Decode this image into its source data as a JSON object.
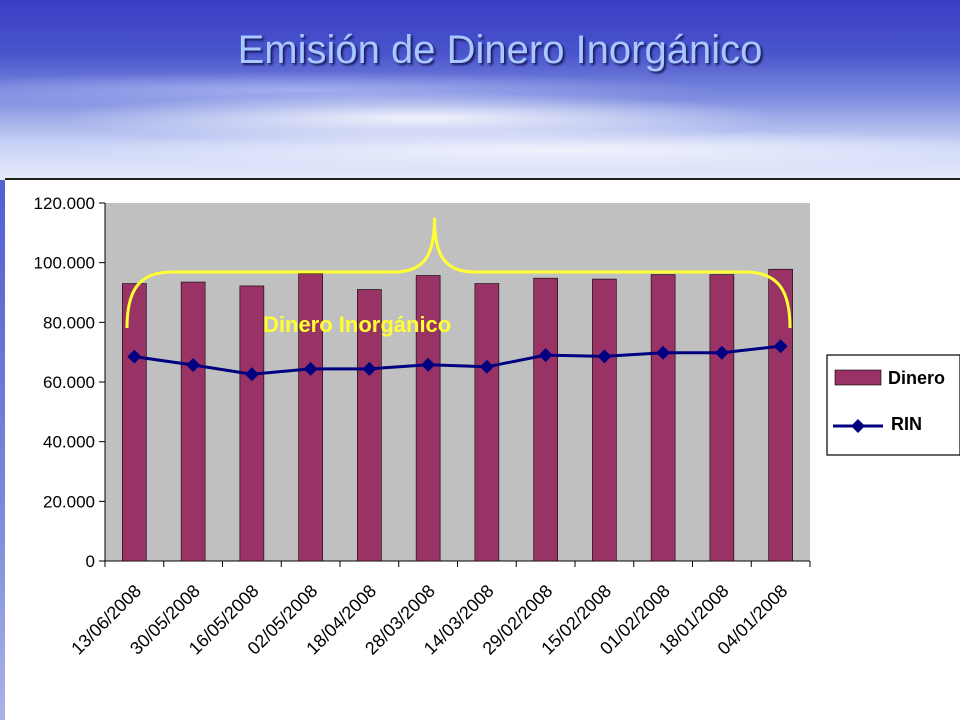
{
  "slide": {
    "title": "Emisión de Dinero Inorgánico"
  },
  "chart_data": {
    "type": "bar",
    "categories": [
      "13/06/2008",
      "30/05/2008",
      "16/05/2008",
      "02/05/2008",
      "18/04/2008",
      "28/03/2008",
      "14/03/2008",
      "29/02/2008",
      "15/02/2008",
      "01/02/2008",
      "18/01/2008",
      "04/01/2008"
    ],
    "series": [
      {
        "name": "Dinero",
        "kind": "bar",
        "color": "#993366",
        "values": [
          93000,
          93500,
          92200,
          96300,
          91000,
          95700,
          93000,
          94800,
          94500,
          96000,
          96000,
          97800
        ]
      },
      {
        "name": "RIN",
        "kind": "line",
        "color": "#000080",
        "values": [
          68500,
          65700,
          62600,
          64400,
          64400,
          65800,
          65100,
          69000,
          68600,
          69800,
          69800,
          72000
        ]
      }
    ],
    "ylim": [
      0,
      120000
    ],
    "yticks": [
      "0",
      "20.000",
      "40.000",
      "60.000",
      "80.000",
      "100.000",
      "120.000"
    ],
    "plot_background": "#c0c0c0",
    "grid": false,
    "legend": "right",
    "annotation": {
      "text": "Dinero Inorgánico",
      "color": "#ffff33"
    }
  }
}
